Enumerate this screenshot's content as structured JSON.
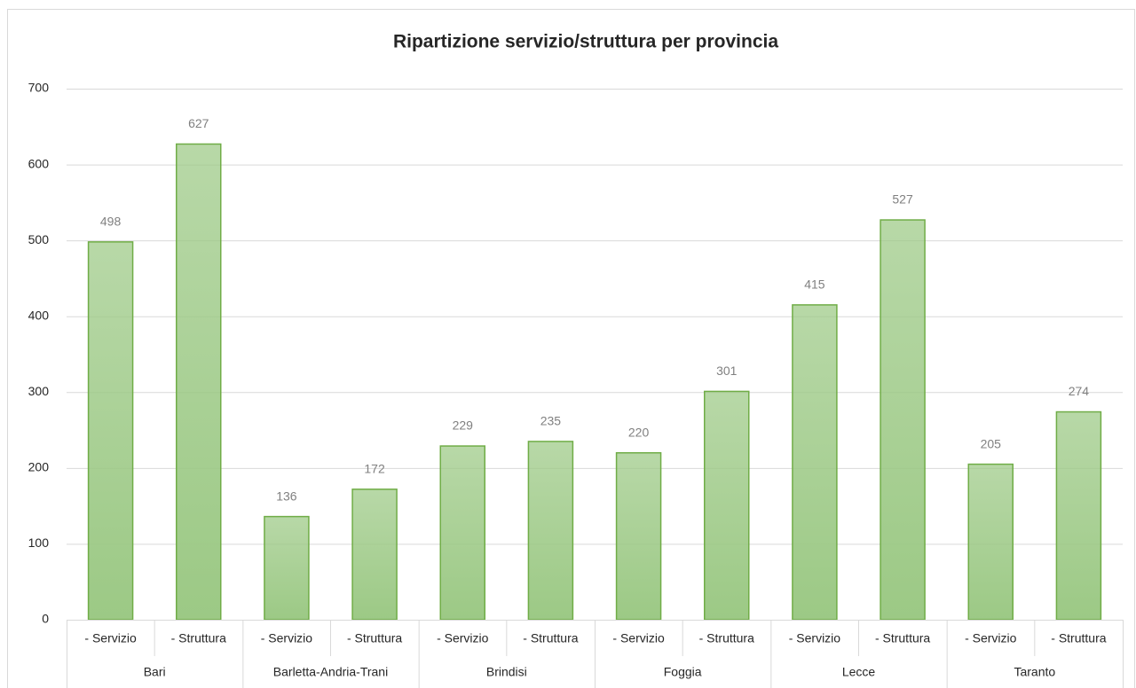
{
  "chart_data": {
    "type": "bar",
    "title": "Ripartizione servizio/struttura per provincia",
    "groups": [
      {
        "name": "Bari",
        "categories": [
          "- Servizio",
          "- Struttura"
        ],
        "values": [
          498,
          627
        ]
      },
      {
        "name": "Barletta-Andria-Trani",
        "categories": [
          "- Servizio",
          "- Struttura"
        ],
        "values": [
          136,
          172
        ]
      },
      {
        "name": "Brindisi",
        "categories": [
          "- Servizio",
          "- Struttura"
        ],
        "values": [
          229,
          235
        ]
      },
      {
        "name": "Foggia",
        "categories": [
          "- Servizio",
          "- Struttura"
        ],
        "values": [
          220,
          301
        ]
      },
      {
        "name": "Lecce",
        "categories": [
          "- Servizio",
          "- Struttura"
        ],
        "values": [
          415,
          527
        ]
      },
      {
        "name": "Taranto",
        "categories": [
          "- Servizio",
          "- Struttura"
        ],
        "values": [
          205,
          274
        ]
      }
    ],
    "color": "#9cc985",
    "edge_color": "#70ad47",
    "ylim": [
      0,
      700
    ],
    "yticks": [
      0,
      100,
      200,
      300,
      400,
      500,
      600,
      700
    ],
    "grid": true
  }
}
